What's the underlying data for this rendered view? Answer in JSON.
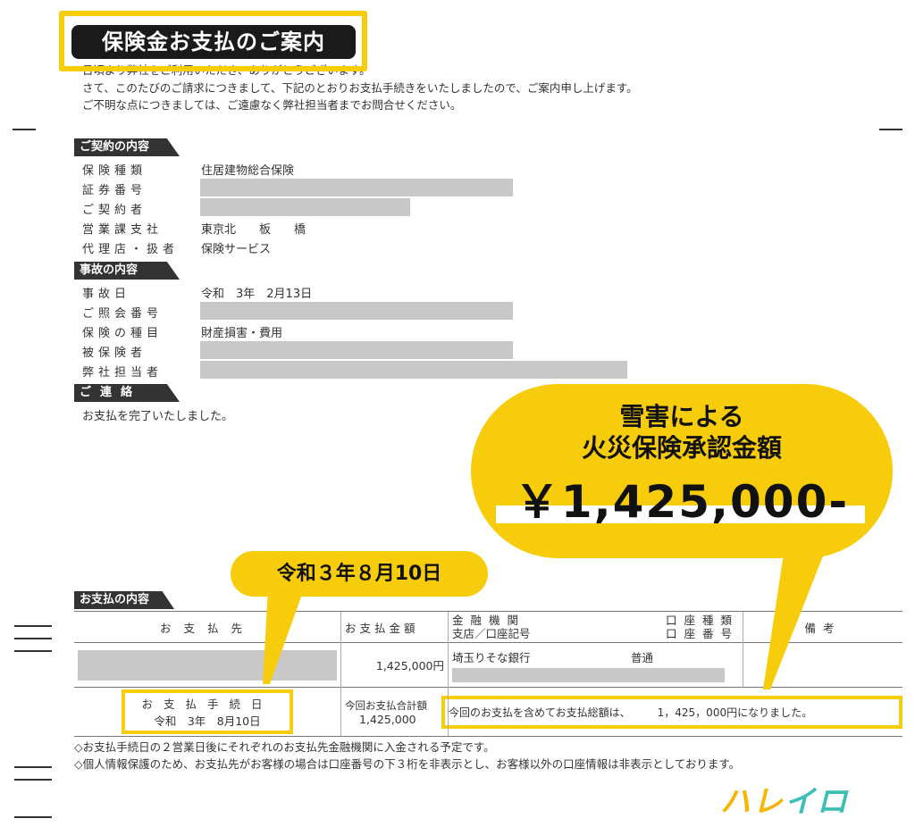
{
  "document": {
    "title": "保険金お支払のご案内",
    "intro": [
      "日頃より弊社をご利用いただき、ありがとうございます。",
      "さて、このたびのご請求につきまして、下記のとおりお支払手続きをいたしましたので、ご案内申し上げます。",
      "ご不明な点につきましては、ご遠慮なく弊社担当者までお問合せください。"
    ],
    "contract": {
      "header": "ご契約の内容",
      "rows": [
        {
          "label": "保険種類",
          "value": "住居建物総合保険"
        },
        {
          "label": "証券番号",
          "value": ""
        },
        {
          "label": "ご契約者",
          "value": ""
        },
        {
          "label": "営業課支社",
          "value": "東京北　　板　　橋"
        },
        {
          "label": "代理店・扱者",
          "value": "保険サービス"
        }
      ]
    },
    "accident": {
      "header": "事故の内容",
      "rows": [
        {
          "label": "事故日",
          "value": "令和　3年　2月13日"
        },
        {
          "label": "ご照会番号",
          "value": ""
        },
        {
          "label": "保険の種目",
          "value": "財産損害・費用"
        },
        {
          "label": "被保険者",
          "value": ""
        },
        {
          "label": "弊社担当者",
          "value": ""
        }
      ]
    },
    "contact": {
      "header": "ご連絡",
      "text": "お支払を完了いたしました。"
    },
    "payment": {
      "header": "お支払の内容",
      "columns": [
        "お支払先",
        "お支払金額",
        "金融機関",
        "支店／口座記号",
        "口座種類",
        "口座番号",
        "備考"
      ],
      "row": {
        "amount": "1,425,000円",
        "bank": "埼玉りそな銀行",
        "account_type": "普通"
      },
      "procedure_label": "お支払手続日",
      "procedure_date": "令和　3年　8月10日",
      "total_label": "今回お支払合計額",
      "total_amount": "1,425,000",
      "total_message": "今回のお支払を含めてお支払総額は、　　　1，425，000円になりました。"
    },
    "notes": [
      "◇お支払手続日の２営業日後にそれぞれのお支払先金融機関に入金される予定です。",
      "◇個人情報保護のため、お支払先がお客様の場合は口座番号の下３桁を非表示とし、お客様以外の口座情報は非表示としております。"
    ]
  },
  "annotations": {
    "bubble_line1": "雪害による",
    "bubble_line2": "火災保険承認金額",
    "bubble_amount": "￥1,425,000-",
    "date_callout": "令和３年８月10日",
    "highlight_color": "#f7cc0a"
  },
  "logo": {
    "text": "ハレイロ",
    "colors": [
      "#f7b500",
      "#3bbfb4"
    ]
  }
}
